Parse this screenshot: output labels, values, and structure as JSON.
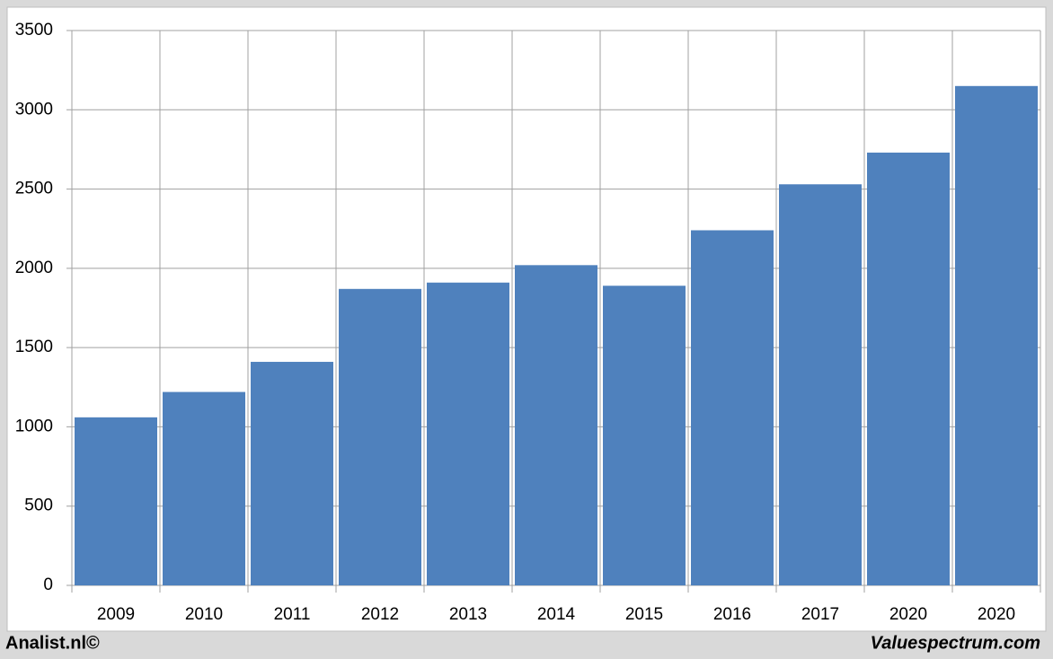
{
  "chart_data": {
    "type": "bar",
    "categories": [
      "2009",
      "2010",
      "2011",
      "2012",
      "2013",
      "2014",
      "2015",
      "2016",
      "2017",
      "2020",
      "2020"
    ],
    "values": [
      1060,
      1220,
      1410,
      1870,
      1910,
      2020,
      1890,
      2240,
      2530,
      2730,
      3150
    ],
    "color": "#4f81bd",
    "ylim": [
      0,
      3500
    ],
    "yticks": [
      0,
      500,
      1000,
      1500,
      2000,
      2500,
      3000,
      3500
    ],
    "grid": true,
    "footer_left": "Analist.nl©",
    "footer_right": "Valuespectrum.com"
  }
}
